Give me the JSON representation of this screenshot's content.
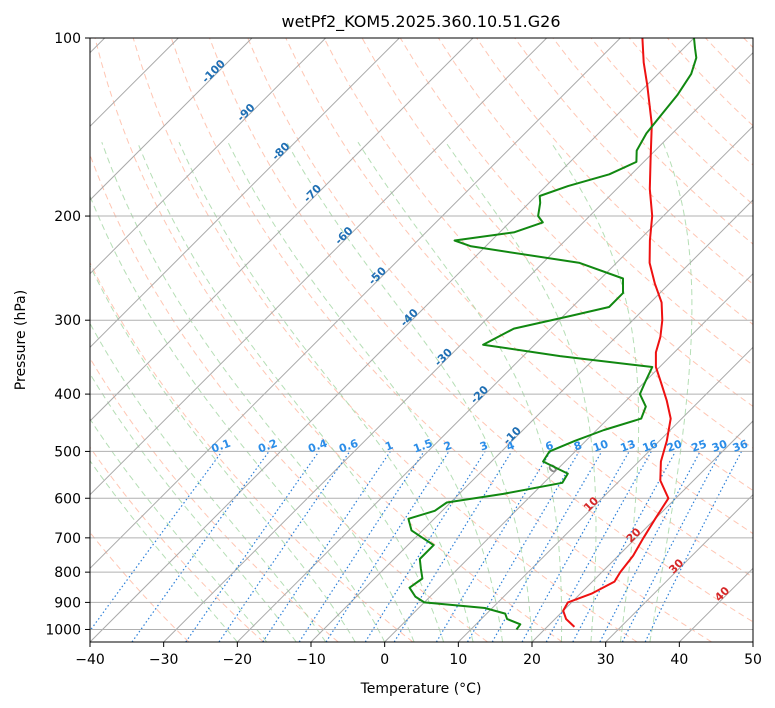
{
  "chart_data": {
    "type": "skew-t",
    "title": "wetPf2_KOM5.2025.360.10.51.G26",
    "xlabel": "Temperature (°C)",
    "ylabel": "Pressure (hPa)",
    "xlim": [
      -40,
      50
    ],
    "ylim": [
      1050,
      100
    ],
    "y_scale": "log",
    "x_ticks": [
      "−40",
      "−30",
      "−20",
      "−10",
      "0",
      "10",
      "20",
      "30",
      "40",
      "50"
    ],
    "x_tick_values": [
      -40,
      -30,
      -20,
      -10,
      0,
      10,
      20,
      30,
      40,
      50
    ],
    "y_ticks": [
      "100",
      "200",
      "300",
      "400",
      "500",
      "600",
      "700",
      "800",
      "900",
      "1000"
    ],
    "y_tick_values": [
      100,
      200,
      300,
      400,
      500,
      600,
      700,
      800,
      900,
      1000
    ],
    "grid": true,
    "colors": {
      "temperature": "#ee1111",
      "dewpoint": "#118811",
      "isotherm": "#aaaaaa",
      "dry_adiabat": "#ffb8a0",
      "moist_adiabat": "#a8d8a8",
      "mixing_ratio": "#2b7fd8",
      "isotherm_label_cold": "#1f6fb4",
      "isotherm_label_warm": "#d62728",
      "isotherm_label_zero": "#888888",
      "mixing_ratio_label": "#2b8de8"
    },
    "isotherm_labels": [
      "-100",
      "-90",
      "-80",
      "-70",
      "-60",
      "-50",
      "-40",
      "-30",
      "-20",
      "-10",
      "0",
      "10",
      "20",
      "30",
      "40"
    ],
    "isotherm_label_values": [
      -100,
      -90,
      -80,
      -70,
      -60,
      -50,
      -40,
      -30,
      -20,
      -10,
      0,
      10,
      20,
      30,
      40
    ],
    "mixing_ratio_labels": [
      "0.1",
      "0.2",
      "0.4",
      "0.6",
      "1",
      "1.5",
      "2",
      "3",
      "4",
      "6",
      "8",
      "10",
      "13",
      "16",
      "20",
      "25",
      "30",
      "36"
    ],
    "mixing_ratio_values": [
      0.1,
      0.2,
      0.4,
      0.6,
      1,
      1.5,
      2,
      3,
      4,
      6,
      8,
      10,
      13,
      16,
      20,
      25,
      30,
      36
    ],
    "series": [
      {
        "name": "Temperature",
        "points": [
          [
            23.7,
            990
          ],
          [
            21.5,
            960
          ],
          [
            20.0,
            930
          ],
          [
            19.5,
            900
          ],
          [
            21.5,
            870
          ],
          [
            23.0,
            830
          ],
          [
            22.5,
            800
          ],
          [
            22.0,
            750
          ],
          [
            21.0,
            700
          ],
          [
            20.0,
            650
          ],
          [
            19.0,
            600
          ],
          [
            15.5,
            560
          ],
          [
            13.0,
            520
          ],
          [
            11.0,
            480
          ],
          [
            8.5,
            440
          ],
          [
            5.5,
            410
          ],
          [
            2.0,
            380
          ],
          [
            -0.5,
            360
          ],
          [
            -2.5,
            340
          ],
          [
            -4.0,
            320
          ],
          [
            -6.0,
            300
          ],
          [
            -8.5,
            280
          ],
          [
            -12.0,
            260
          ],
          [
            -15.5,
            240
          ],
          [
            -18.5,
            220
          ],
          [
            -21.5,
            200
          ],
          [
            -25.5,
            180
          ],
          [
            -29.5,
            160
          ],
          [
            -34.0,
            140
          ],
          [
            -40.0,
            120
          ],
          [
            -43.5,
            110
          ],
          [
            -47.0,
            100
          ]
        ]
      },
      {
        "name": "Dewpoint",
        "points": [
          [
            16.2,
            1000
          ],
          [
            16.0,
            980
          ],
          [
            13.5,
            960
          ],
          [
            12.5,
            940
          ],
          [
            9.0,
            920
          ],
          [
            0.0,
            900
          ],
          [
            -2.0,
            880
          ],
          [
            -4.0,
            850
          ],
          [
            -3.5,
            820
          ],
          [
            -5.0,
            790
          ],
          [
            -6.5,
            760
          ],
          [
            -6.5,
            720
          ],
          [
            -9.0,
            700
          ],
          [
            -11.5,
            680
          ],
          [
            -13.5,
            650
          ],
          [
            -11.0,
            630
          ],
          [
            -10.5,
            610
          ],
          [
            -4.0,
            590
          ],
          [
            2.5,
            565
          ],
          [
            2.0,
            545
          ],
          [
            -3.0,
            520
          ],
          [
            -3.5,
            500
          ],
          [
            -1.5,
            480
          ],
          [
            1.0,
            460
          ],
          [
            4.5,
            440
          ],
          [
            3.5,
            420
          ],
          [
            1.0,
            400
          ],
          [
            0.0,
            380
          ],
          [
            -1.0,
            360
          ],
          [
            -15.0,
            345
          ],
          [
            -27.0,
            330
          ],
          [
            -25.0,
            310
          ],
          [
            -19.0,
            295
          ],
          [
            -15.0,
            285
          ],
          [
            -15.0,
            270
          ],
          [
            -17.0,
            255
          ],
          [
            -25.0,
            240
          ],
          [
            -42.0,
            225
          ],
          [
            -45.0,
            220
          ],
          [
            -38.0,
            213
          ],
          [
            -35.5,
            205
          ],
          [
            -37.0,
            200
          ],
          [
            -38.5,
            190
          ],
          [
            -39.5,
            185
          ],
          [
            -37.0,
            178
          ],
          [
            -33.0,
            170
          ],
          [
            -31.0,
            162
          ],
          [
            -32.5,
            155
          ],
          [
            -33.5,
            145
          ],
          [
            -34.0,
            135
          ],
          [
            -34.5,
            125
          ],
          [
            -35.5,
            115
          ],
          [
            -37.0,
            108
          ],
          [
            -38.5,
            104
          ],
          [
            -40.0,
            100
          ]
        ]
      }
    ]
  }
}
